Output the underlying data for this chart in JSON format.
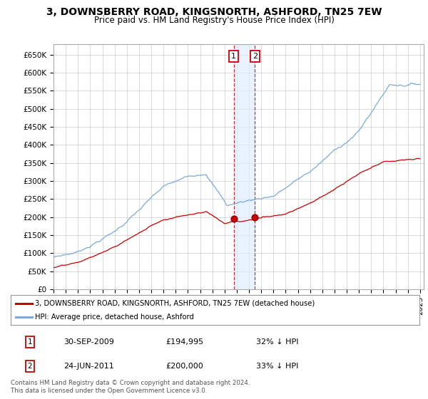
{
  "title": "3, DOWNSBERRY ROAD, KINGSNORTH, ASHFORD, TN25 7EW",
  "subtitle": "Price paid vs. HM Land Registry's House Price Index (HPI)",
  "ylim": [
    0,
    680000
  ],
  "yticks": [
    0,
    50000,
    100000,
    150000,
    200000,
    250000,
    300000,
    350000,
    400000,
    450000,
    500000,
    550000,
    600000,
    650000
  ],
  "ytick_labels": [
    "£0",
    "£50K",
    "£100K",
    "£150K",
    "£200K",
    "£250K",
    "£300K",
    "£350K",
    "£400K",
    "£450K",
    "£500K",
    "£550K",
    "£600K",
    "£650K"
  ],
  "sale1_date": 2009.75,
  "sale1_price": 194995,
  "sale1_label": "1",
  "sale2_date": 2011.48,
  "sale2_price": 200000,
  "sale2_label": "2",
  "line_color_hpi": "#7aaadd",
  "line_color_price": "#cc0000",
  "shade_color": "#ddeeff",
  "legend_label1": "3, DOWNSBERRY ROAD, KINGSNORTH, ASHFORD, TN25 7EW (detached house)",
  "legend_label2": "HPI: Average price, detached house, Ashford",
  "table_row1": [
    "1",
    "30-SEP-2009",
    "£194,995",
    "32% ↓ HPI"
  ],
  "table_row2": [
    "2",
    "24-JUN-2011",
    "£200,000",
    "33% ↓ HPI"
  ],
  "footnote": "Contains HM Land Registry data © Crown copyright and database right 2024.\nThis data is licensed under the Open Government Licence v3.0.",
  "bg_color": "#ffffff",
  "grid_color": "#cccccc",
  "title_fontsize": 10,
  "subtitle_fontsize": 8.5,
  "tick_fontsize": 7.5
}
